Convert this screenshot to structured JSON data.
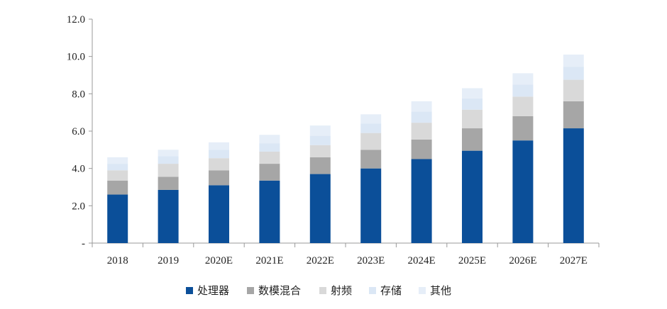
{
  "chart_data": {
    "type": "bar",
    "stacked": true,
    "title": "",
    "xlabel": "",
    "ylabel": "",
    "ylim": [
      0,
      12
    ],
    "y_ticks": [
      "-",
      "2.0",
      "4.0",
      "6.0",
      "8.0",
      "10.0",
      "12.0"
    ],
    "grid": false,
    "legend_position": "bottom",
    "categories": [
      "2018",
      "2019",
      "2020E",
      "2021E",
      "2022E",
      "2023E",
      "2024E",
      "2025E",
      "2026E",
      "2027E"
    ],
    "series": [
      {
        "name": "处理器",
        "color": "#0b4f99",
        "values": [
          2.6,
          2.85,
          3.1,
          3.35,
          3.7,
          4.0,
          4.5,
          4.95,
          5.5,
          6.15
        ]
      },
      {
        "name": "数模混合",
        "color": "#a6a6a6",
        "values": [
          0.75,
          0.7,
          0.8,
          0.9,
          0.9,
          1.0,
          1.05,
          1.2,
          1.3,
          1.45
        ]
      },
      {
        "name": "射频",
        "color": "#d9d9d9",
        "values": [
          0.55,
          0.7,
          0.65,
          0.65,
          0.65,
          0.9,
          0.9,
          1.0,
          1.05,
          1.15
        ]
      },
      {
        "name": "存储",
        "color": "#dbe7f5",
        "values": [
          0.35,
          0.4,
          0.45,
          0.45,
          0.5,
          0.5,
          0.6,
          0.6,
          0.65,
          0.7
        ]
      },
      {
        "name": "其他",
        "color": "#e6eef8",
        "values": [
          0.35,
          0.35,
          0.4,
          0.45,
          0.55,
          0.5,
          0.55,
          0.55,
          0.6,
          0.65
        ]
      }
    ]
  }
}
